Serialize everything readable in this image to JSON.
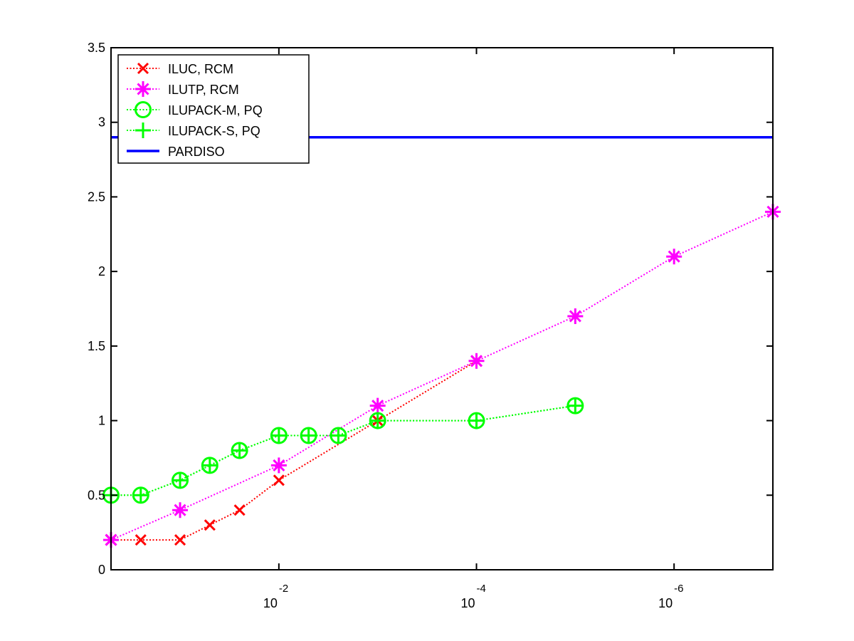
{
  "chart_data": {
    "type": "line",
    "x_scale": "log",
    "x_reversed": true,
    "xlim": [
      0.5,
      1e-07
    ],
    "ylim": [
      0,
      3.5
    ],
    "y_ticks": [
      0,
      0.5,
      1,
      1.5,
      2,
      2.5,
      3,
      3.5
    ],
    "y_tick_labels": [
      "0",
      "0.5",
      "1",
      "1.5",
      "2",
      "2.5",
      "3",
      "3.5"
    ],
    "x_ticks": [
      0.01,
      0.0001,
      1e-06
    ],
    "x_tick_labels": [
      {
        "base": "10",
        "exp": "-2"
      },
      {
        "base": "10",
        "exp": "-4"
      },
      {
        "base": "10",
        "exp": "-6"
      }
    ],
    "legend_position": "top-left",
    "grid": false,
    "series": [
      {
        "name": "ILUC, RCM",
        "color": "#ff0000",
        "marker": "x",
        "line_style": "dotted",
        "x": [
          0.5,
          0.25,
          0.1,
          0.05,
          0.025,
          0.01,
          0.001,
          0.0001
        ],
        "y": [
          0.2,
          0.2,
          0.2,
          0.3,
          0.4,
          0.6,
          1.0,
          1.4
        ]
      },
      {
        "name": "ILUTP, RCM",
        "color": "#ff00ff",
        "marker": "asterisk",
        "line_style": "dotted",
        "x": [
          0.5,
          0.1,
          0.01,
          0.001,
          0.0001,
          1e-05,
          1e-06,
          1e-07
        ],
        "y": [
          0.2,
          0.4,
          0.7,
          1.1,
          1.4,
          1.7,
          2.1,
          2.4
        ]
      },
      {
        "name": "ILUPACK-M, PQ",
        "color": "#00ff00",
        "marker": "circle",
        "line_style": "dotted",
        "x": [
          0.5,
          0.25,
          0.1,
          0.05,
          0.025,
          0.01,
          0.005,
          0.0025,
          0.001,
          0.0001,
          1e-05
        ],
        "y": [
          0.5,
          0.5,
          0.6,
          0.7,
          0.8,
          0.9,
          0.9,
          0.9,
          1.0,
          1.0,
          1.1
        ]
      },
      {
        "name": "ILUPACK-S, PQ",
        "color": "#00ff00",
        "marker": "plus",
        "line_style": "dotted",
        "x": [
          0.5,
          0.25,
          0.1,
          0.05,
          0.025,
          0.01,
          0.005,
          0.0025,
          0.001,
          0.0001,
          1e-05
        ],
        "y": [
          0.5,
          0.5,
          0.6,
          0.7,
          0.8,
          0.9,
          0.9,
          0.9,
          1.0,
          1.0,
          1.1
        ]
      },
      {
        "name": "PARDISO",
        "color": "#0000ff",
        "marker": "none",
        "line_style": "solid",
        "x": [
          0.5,
          1e-07
        ],
        "y": [
          2.9,
          2.9
        ]
      }
    ]
  }
}
